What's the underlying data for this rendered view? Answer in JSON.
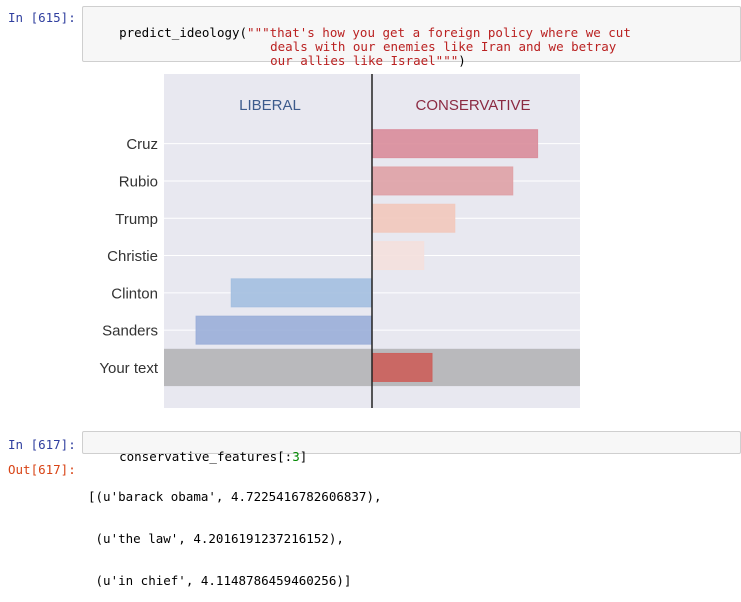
{
  "cells": {
    "in615": {
      "prompt": "In [615]:",
      "code_func": "predict_ideology(",
      "code_lines": [
        "\"\"\"that's how you get a foreign policy where we cut",
        "deals with our enemies like Iran and we betray",
        "our allies like Israel\"\"\""
      ],
      "code_close": ")"
    },
    "in617": {
      "prompt": "In [617]:",
      "code_var": "conservative_features",
      "code_open": "[:",
      "code_num": "3",
      "code_close": "]"
    },
    "out617": {
      "prompt": "Out[617]:",
      "lines": [
        "[(u'barack obama', 4.7225416782606837),",
        " (u'the law', 4.2016191237216152),",
        " (u'in chief', 4.1148786459460256)]"
      ]
    }
  },
  "chart_data": {
    "type": "bar",
    "orientation": "horizontal",
    "left_label": "LIBERAL",
    "right_label": "CONSERVATIVE",
    "categories": [
      "Cruz",
      "Rubio",
      "Trump",
      "Christie",
      "Clinton",
      "Sanders",
      "Your text"
    ],
    "values": [
      0.8,
      0.68,
      0.4,
      0.25,
      -0.68,
      -0.85,
      0.29
    ],
    "colors": [
      "#d98c9a",
      "#dfa1a5",
      "#f2c8bb",
      "#f4e0dd",
      "#a3bfe0",
      "#9aaed8",
      "#cc5f5a"
    ],
    "highlight_index": 6,
    "xlim": [
      -1,
      1
    ],
    "colors_theme": {
      "background": "#e8e8f0",
      "highlight_band": "#b9b9bc",
      "liberal_text": "#3d5b8c",
      "conservative_text": "#8b2a42",
      "center_line": "#222222"
    }
  }
}
